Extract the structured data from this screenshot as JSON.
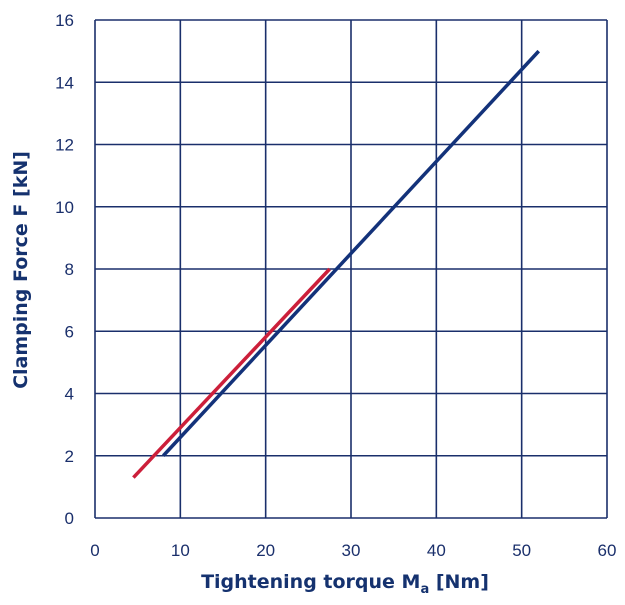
{
  "chart_data": {
    "type": "line",
    "title": "",
    "xlabel": "Tightening torque Ma [Nm]",
    "xlabel_main": "Tightening torque M",
    "xlabel_sub": "a",
    "xlabel_tail": " [Nm]",
    "ylabel": "Clamping Force F [kN]",
    "xlim": [
      0,
      60
    ],
    "ylim": [
      0,
      16
    ],
    "xticks": [
      "0",
      "10",
      "20",
      "30",
      "40",
      "50",
      "60"
    ],
    "yticks": [
      "0",
      "2",
      "4",
      "6",
      "8",
      "10",
      "12",
      "14",
      "16"
    ],
    "grid": true,
    "legend": "none",
    "series": [
      {
        "color": "#13327a",
        "x": [
          8,
          52
        ],
        "y": [
          2,
          15
        ]
      },
      {
        "color": "#cc1f3a",
        "x": [
          4.5,
          27.5
        ],
        "y": [
          1.3,
          8
        ]
      }
    ],
    "colors": {
      "grid": "#1a2f6b",
      "text": "#1a2f6b",
      "title": "#15326f"
    }
  }
}
